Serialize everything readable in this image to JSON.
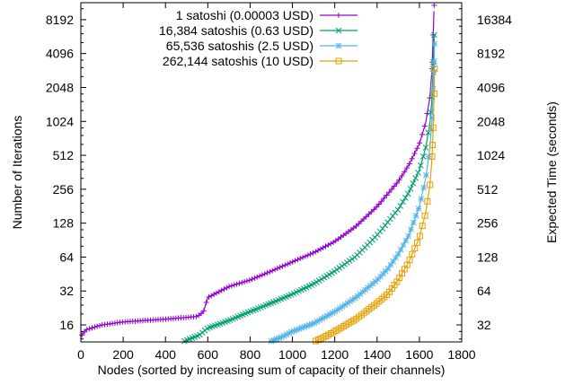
{
  "chart_data": {
    "type": "scatter",
    "title": "",
    "xlabel": "Nodes (sorted by increasing sum of capacity of their channels)",
    "ylabel": "Number of Iterations",
    "y2label": "Expected Time (seconds)",
    "xlim": [
      0,
      1800
    ],
    "ylim": [
      11.3,
      11585
    ],
    "yscale": "log2",
    "y2lim": [
      22.6,
      23170
    ],
    "y2scale": "log2",
    "x_ticks": [
      "0",
      "200",
      "400",
      "600",
      "800",
      "1000",
      "1200",
      "1400",
      "1600",
      "1800"
    ],
    "y_ticks": [
      16,
      32,
      64,
      128,
      256,
      512,
      1024,
      2048,
      4096,
      8192
    ],
    "y2_ticks": [
      32,
      64,
      128,
      256,
      512,
      1024,
      2048,
      4096,
      8192,
      16384
    ],
    "grid": false,
    "legend_position": "top-right",
    "series": [
      {
        "name": "1 satoshi (0.00003 USD)",
        "color": "#9400d3",
        "marker": "plus",
        "points": [
          [
            5,
            13
          ],
          [
            25,
            14.5
          ],
          [
            100,
            16
          ],
          [
            200,
            17
          ],
          [
            400,
            18
          ],
          [
            550,
            19
          ],
          [
            580,
            21
          ],
          [
            600,
            28
          ],
          [
            700,
            35
          ],
          [
            800,
            40
          ],
          [
            900,
            48
          ],
          [
            1000,
            58
          ],
          [
            1100,
            70
          ],
          [
            1200,
            88
          ],
          [
            1300,
            120
          ],
          [
            1400,
            180
          ],
          [
            1500,
            300
          ],
          [
            1550,
            420
          ],
          [
            1600,
            650
          ],
          [
            1630,
            1000
          ],
          [
            1650,
            1700
          ],
          [
            1660,
            3000
          ],
          [
            1665,
            6000
          ],
          [
            1670,
            11000
          ]
        ]
      },
      {
        "name": "16,384 satoshis (0.63 USD)",
        "color": "#009e73",
        "marker": "cross",
        "points": [
          [
            490,
            11.5
          ],
          [
            560,
            13
          ],
          [
            600,
            15
          ],
          [
            700,
            17.5
          ],
          [
            800,
            21
          ],
          [
            900,
            25
          ],
          [
            1000,
            30
          ],
          [
            1100,
            37
          ],
          [
            1200,
            48
          ],
          [
            1300,
            65
          ],
          [
            1400,
            100
          ],
          [
            1500,
            170
          ],
          [
            1550,
            240
          ],
          [
            1600,
            380
          ],
          [
            1630,
            600
          ],
          [
            1650,
            1000
          ],
          [
            1660,
            1700
          ],
          [
            1665,
            3000
          ],
          [
            1670,
            6000
          ]
        ]
      },
      {
        "name": "65,536 satoshis (2.5 USD)",
        "color": "#56b4e9",
        "marker": "star",
        "points": [
          [
            900,
            11.5
          ],
          [
            950,
            12.5
          ],
          [
            1000,
            14
          ],
          [
            1100,
            16.5
          ],
          [
            1200,
            21
          ],
          [
            1300,
            28
          ],
          [
            1400,
            40
          ],
          [
            1450,
            50
          ],
          [
            1500,
            68
          ],
          [
            1550,
            100
          ],
          [
            1600,
            180
          ],
          [
            1630,
            320
          ],
          [
            1650,
            600
          ],
          [
            1660,
            1100
          ],
          [
            1665,
            2000
          ],
          [
            1670,
            3500
          ],
          [
            1672,
            5000
          ]
        ]
      },
      {
        "name": "262,144 satoshis (10 USD)",
        "color": "#e69f00",
        "marker": "square",
        "points": [
          [
            1110,
            11.5
          ],
          [
            1150,
            12.5
          ],
          [
            1200,
            14
          ],
          [
            1300,
            18
          ],
          [
            1400,
            25
          ],
          [
            1450,
            30
          ],
          [
            1500,
            40
          ],
          [
            1550,
            58
          ],
          [
            1600,
            95
          ],
          [
            1630,
            160
          ],
          [
            1650,
            280
          ],
          [
            1660,
            500
          ],
          [
            1665,
            900
          ],
          [
            1670,
            1800
          ],
          [
            1672,
            3000
          ]
        ]
      }
    ]
  }
}
